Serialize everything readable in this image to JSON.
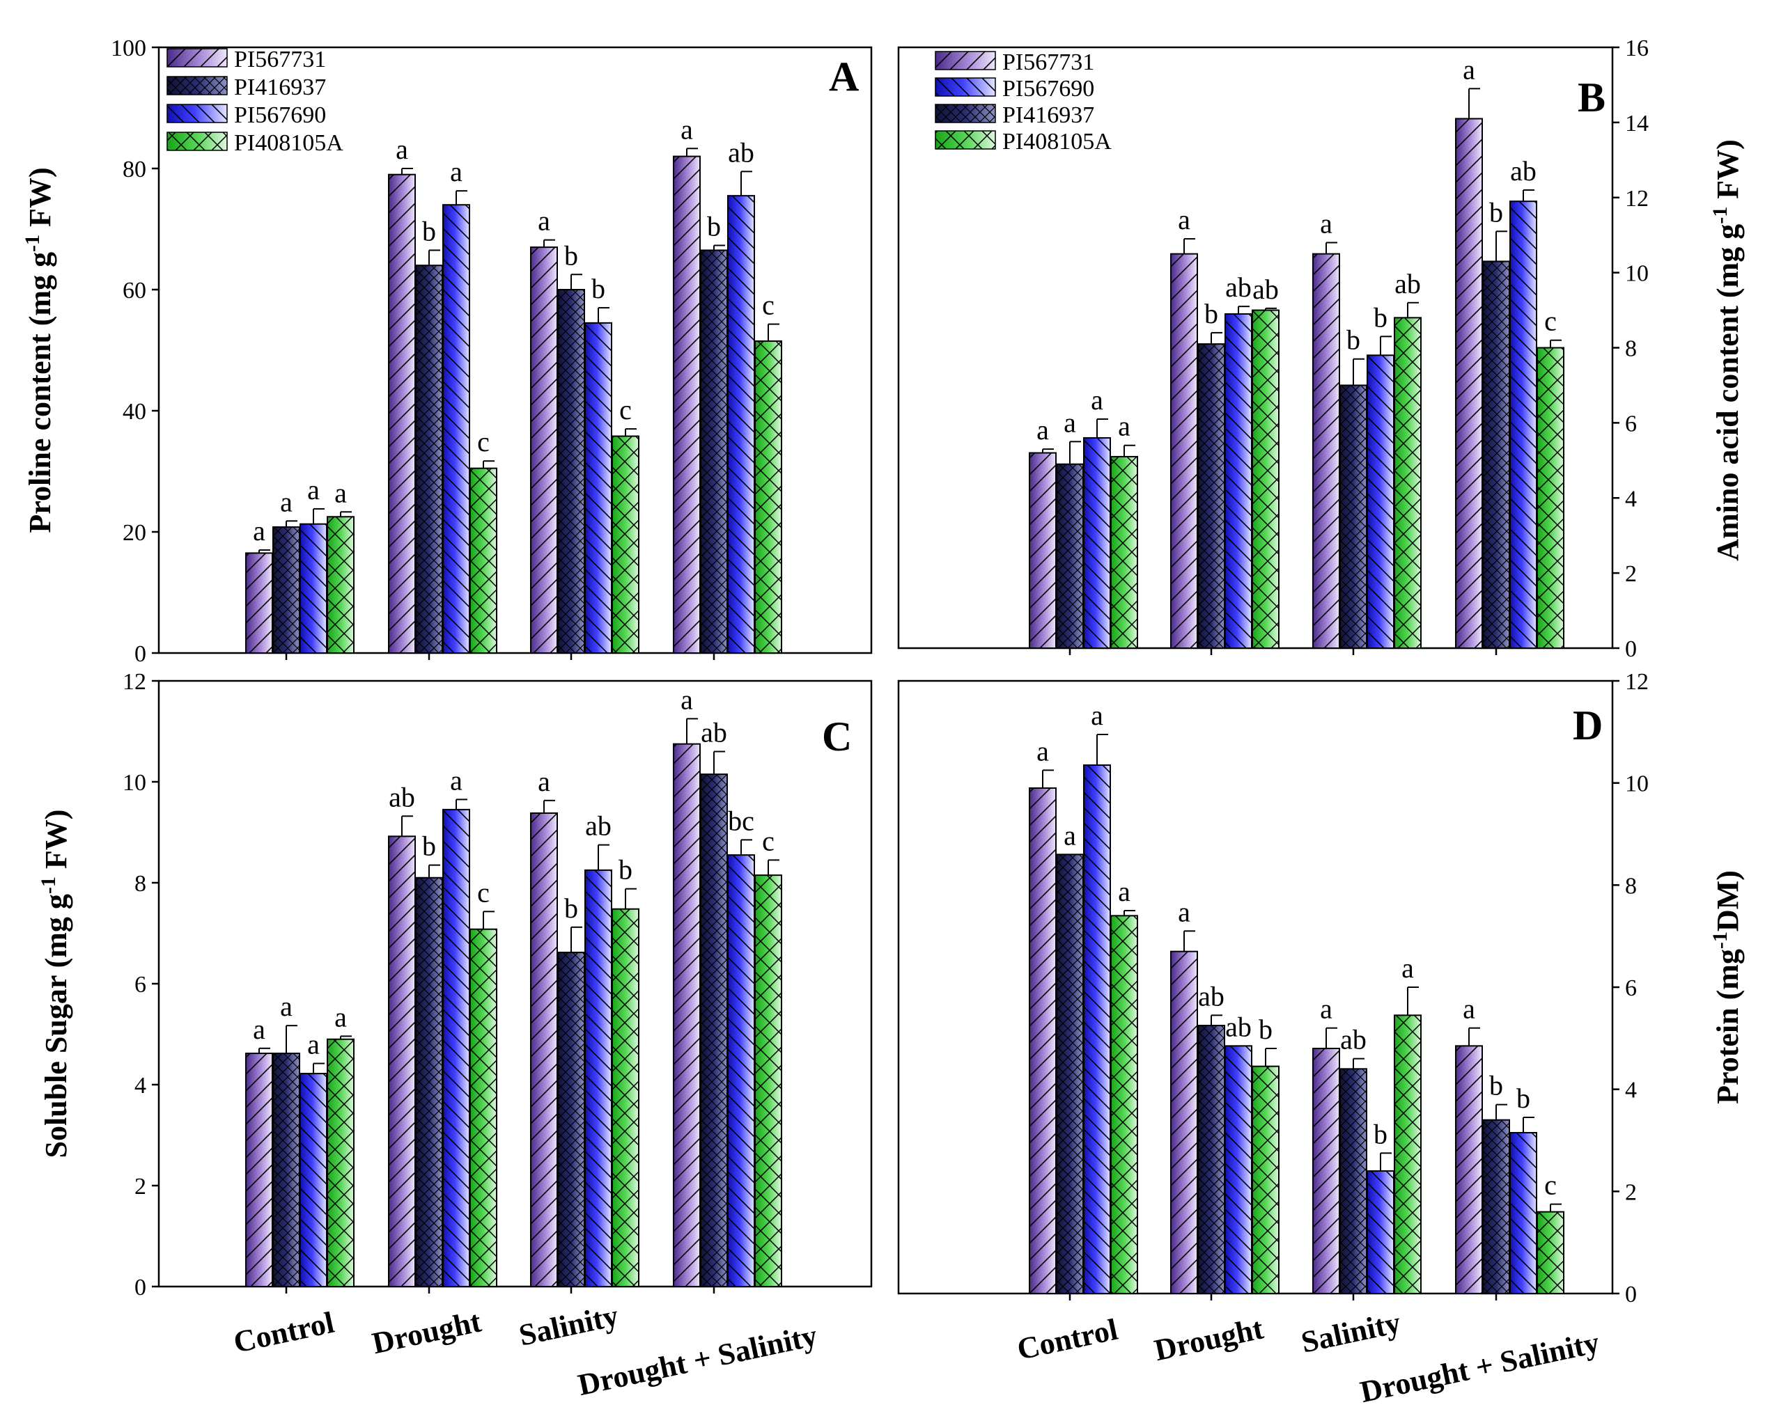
{
  "colors": {
    "PI567731": "#8a66c6",
    "PI416937": "#2b2d73",
    "PI567690": "#3a3ae0",
    "PI408105A": "#3fc43f"
  },
  "chart_data": [
    {
      "panel": "A",
      "type": "bar",
      "ylabel": "Proline content (mg g-1 FW)",
      "ylabel_parts": [
        "Proline content (mg g",
        "-1",
        " FW)"
      ],
      "categories": [
        "Control",
        "Drought",
        "Salinity",
        "Drought + Salinity"
      ],
      "ylim": [
        0,
        100
      ],
      "yticks": [
        0,
        20,
        40,
        60,
        80,
        100
      ],
      "legend": [
        "PI567731",
        "PI416937",
        "PI567690",
        "PI408105A"
      ],
      "series": [
        {
          "name": "PI567731",
          "values": [
            16.5,
            79,
            67,
            82
          ],
          "errors": [
            0.5,
            1.0,
            1.2,
            1.3
          ],
          "letters": [
            "a",
            "a",
            "a",
            "a"
          ]
        },
        {
          "name": "PI416937",
          "values": [
            20.8,
            64,
            60,
            66.5
          ],
          "errors": [
            1.0,
            2.5,
            2.5,
            0.8
          ],
          "letters": [
            "a",
            "b",
            "b",
            "b"
          ]
        },
        {
          "name": "PI567690",
          "values": [
            21.3,
            74,
            54.5,
            75.5
          ],
          "errors": [
            2.5,
            2.3,
            2.5,
            4.0
          ],
          "letters": [
            "a",
            "a",
            "b",
            "ab"
          ]
        },
        {
          "name": "PI408105A",
          "values": [
            22.5,
            30.5,
            35.8,
            51.5
          ],
          "errors": [
            0.8,
            1.2,
            1.2,
            2.8
          ],
          "letters": [
            "a",
            "c",
            "c",
            "c"
          ]
        }
      ]
    },
    {
      "panel": "B",
      "type": "bar",
      "ylabel": "Amino acid content (mg g-1 FW)",
      "ylabel_parts": [
        "Amino acid content (mg g",
        "-1",
        " FW)"
      ],
      "categories": [
        "Control",
        "Drought",
        "Salinity",
        "Drought + Salinity"
      ],
      "ylim": [
        0,
        16
      ],
      "yticks": [
        0,
        2,
        4,
        6,
        8,
        10,
        12,
        14,
        16
      ],
      "legend": [
        "PI567731",
        "PI567690",
        "PI416937",
        "PI408105A"
      ],
      "series": [
        {
          "name": "PI567731",
          "values": [
            5.2,
            10.5,
            10.5,
            14.1
          ],
          "errors": [
            0.1,
            0.4,
            0.3,
            0.8
          ],
          "letters": [
            "a",
            "a",
            "a",
            "a"
          ]
        },
        {
          "name": "PI416937",
          "values": [
            4.9,
            8.1,
            7.0,
            10.3
          ],
          "errors": [
            0.6,
            0.3,
            0.7,
            0.8
          ],
          "letters": [
            "a",
            "b",
            "b",
            "b"
          ]
        },
        {
          "name": "PI567690",
          "values": [
            5.6,
            8.9,
            7.8,
            11.9
          ],
          "errors": [
            0.5,
            0.2,
            0.5,
            0.3
          ],
          "letters": [
            "a",
            "ab",
            "b",
            "ab"
          ]
        },
        {
          "name": "PI408105A",
          "values": [
            5.1,
            9.0,
            8.8,
            8.0
          ],
          "errors": [
            0.3,
            0.05,
            0.4,
            0.2
          ],
          "letters": [
            "a",
            "ab",
            "ab",
            "c"
          ]
        }
      ]
    },
    {
      "panel": "C",
      "type": "bar",
      "ylabel": "Soluble Sugar (mg g-1 FW)",
      "ylabel_parts": [
        "Soluble Sugar (mg g",
        "-1",
        " FW)"
      ],
      "categories": [
        "Control",
        "Drought",
        "Salinity",
        "Drought + Salinity"
      ],
      "ylim": [
        0,
        12
      ],
      "yticks": [
        0,
        2,
        4,
        6,
        8,
        10,
        12
      ],
      "legend": [],
      "series": [
        {
          "name": "PI567731",
          "values": [
            4.62,
            8.92,
            9.38,
            10.75
          ],
          "errors": [
            0.1,
            0.4,
            0.25,
            0.5
          ],
          "letters": [
            "a",
            "ab",
            "a",
            "a"
          ]
        },
        {
          "name": "PI416937",
          "values": [
            4.62,
            8.1,
            6.62,
            10.15
          ],
          "errors": [
            0.55,
            0.25,
            0.5,
            0.45
          ],
          "letters": [
            "a",
            "b",
            "b",
            "ab"
          ]
        },
        {
          "name": "PI567690",
          "values": [
            4.22,
            9.45,
            8.25,
            8.55
          ],
          "errors": [
            0.2,
            0.2,
            0.5,
            0.3
          ],
          "letters": [
            "a",
            "a",
            "ab",
            "bc"
          ]
        },
        {
          "name": "PI408105A",
          "values": [
            4.9,
            7.08,
            7.48,
            8.15
          ],
          "errors": [
            0.06,
            0.35,
            0.4,
            0.3
          ],
          "letters": [
            "a",
            "c",
            "b",
            "c"
          ]
        }
      ]
    },
    {
      "panel": "D",
      "type": "bar",
      "ylabel": "Protein (mg-1DM)",
      "ylabel_parts": [
        "Protein (mg",
        "-1",
        "DM)"
      ],
      "categories": [
        "Control",
        "Drought",
        "Salinity",
        "Drought + Salinity"
      ],
      "ylim": [
        0,
        12
      ],
      "yticks": [
        0,
        2,
        4,
        6,
        8,
        10,
        12
      ],
      "legend": [],
      "series": [
        {
          "name": "PI567731",
          "values": [
            9.9,
            6.7,
            4.8,
            4.85
          ],
          "errors": [
            0.35,
            0.4,
            0.4,
            0.35
          ],
          "letters": [
            "a",
            "a",
            "a",
            "a"
          ]
        },
        {
          "name": "PI416937",
          "values": [
            8.6,
            5.25,
            4.4,
            3.4
          ],
          "errors": [
            0.0,
            0.2,
            0.2,
            0.3
          ],
          "letters": [
            "a",
            "ab",
            "ab",
            "b"
          ]
        },
        {
          "name": "PI567690",
          "values": [
            10.35,
            4.85,
            2.4,
            3.15
          ],
          "errors": [
            0.6,
            0.0,
            0.35,
            0.3
          ],
          "letters": [
            "a",
            "ab",
            "b",
            "b"
          ]
        },
        {
          "name": "PI408105A",
          "values": [
            7.4,
            4.45,
            5.45,
            1.6
          ],
          "errors": [
            0.1,
            0.35,
            0.55,
            0.15
          ],
          "letters": [
            "a",
            "b",
            "a",
            "c"
          ]
        }
      ]
    }
  ]
}
